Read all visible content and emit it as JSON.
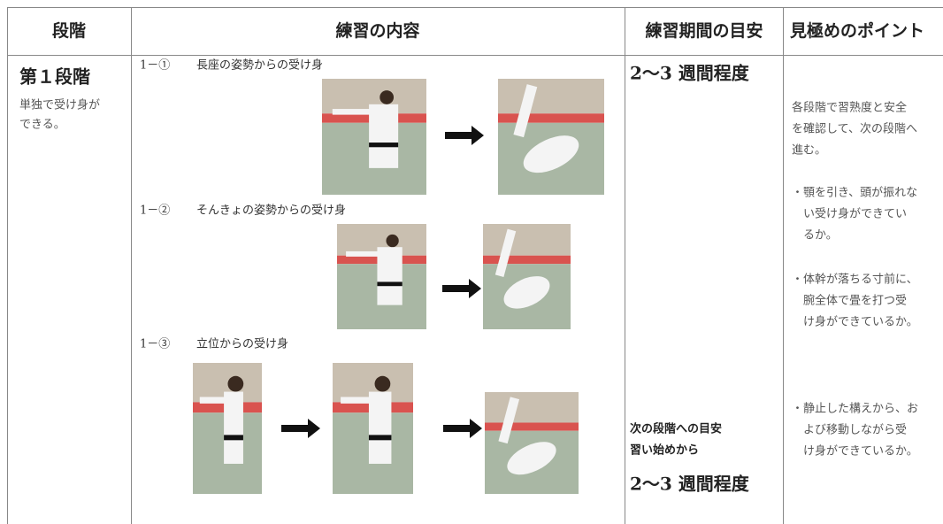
{
  "header": {
    "columns": [
      "段階",
      "練習の内容",
      "練習期間の目安",
      "見極めのポイント"
    ]
  },
  "stage": {
    "title": "第１段階",
    "description": [
      "単独で受け身が",
      "できる。"
    ]
  },
  "exercises": [
    {
      "label": "1－①",
      "title": "長座の姿勢からの受け身"
    },
    {
      "label": "1－②",
      "title": "そんきょの姿勢からの受け身"
    },
    {
      "label": "1－③",
      "title": "立位からの受け身"
    }
  ],
  "duration": "2～3 週間程度",
  "next_stage": {
    "heading": "次の段階への目安",
    "from": "習い始めから",
    "duration": "2～3 週間程度"
  },
  "points": [
    [
      "各段階で習熟度と安全",
      "を確認して、次の段階へ",
      "進む。"
    ],
    [
      "・顎を引き、頭が振れな",
      "い受け身ができてい",
      "るか。"
    ],
    [
      "・体幹が落ちる寸前に、",
      "腕全体で畳を打つ受",
      "け身ができているか。"
    ],
    [
      "・静止した構えから、お",
      "よび移動しながら受",
      "け身ができているか。"
    ]
  ]
}
